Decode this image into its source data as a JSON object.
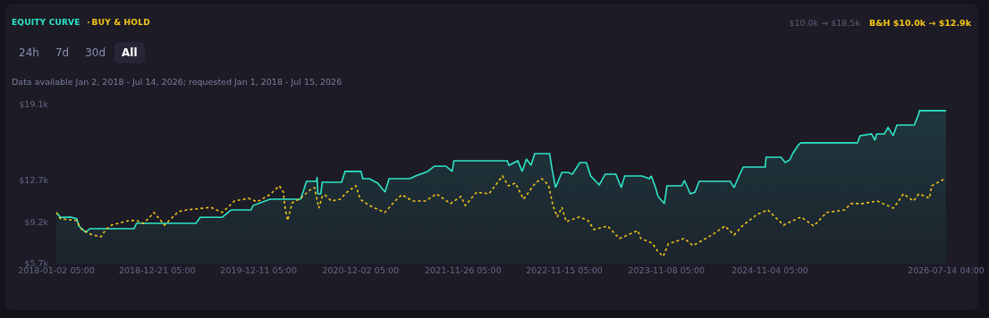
{
  "chart_data": {
    "type": "line",
    "legend": "top left",
    "marker": "none",
    "grid": false,
    "annotations": [
      "24h",
      "7d",
      "30d",
      "All",
      "Data available Jan 2, 2018 - Jul 14, 2026; requested Jan 1, 2018 - Jul 15, 2026",
      "$10.0k → $18.5k",
      "B&H $10.0k → $12.9k"
    ],
    "xlim": [
      "2018-01-02T05:00",
      "2026-07-14T04:00"
    ],
    "xticks": [
      {
        "value": "2018-01-02T05:00",
        "label": "2018-01-02 05:00"
      },
      {
        "value": "2018-12-21T05:00",
        "label": "2018-12-21 05:00"
      },
      {
        "value": "2019-12-11T05:00",
        "label": "2019-12-11 05:00"
      },
      {
        "value": "2020-12-02T05:00",
        "label": "2020-12-02 05:00"
      },
      {
        "value": "2021-11-26T05:00",
        "label": "2021-11-26 05:00"
      },
      {
        "value": "2022-11-15T05:00",
        "label": "2022-11-15 05:00"
      },
      {
        "value": "2023-11-08T05:00",
        "label": "2023-11-08 05:00"
      },
      {
        "value": "2024-11-04T05:00",
        "label": "2024-11-04 05:00"
      },
      {
        "value": "2026-07-14T04:00",
        "label": "2026-07-14 04:00"
      }
    ],
    "ylim": [
      5700,
      19100
    ],
    "yticks": [
      {
        "value": 5700,
        "label": "$5.7k"
      },
      {
        "value": 9200,
        "label": "$9.2k"
      },
      {
        "value": 12700,
        "label": "$12.7k"
      },
      {
        "value": 19100,
        "label": "$19.1k"
      }
    ],
    "series": [
      {
        "name": "EQUITY CURVE",
        "type": "area",
        "color": "#2ee6c9",
        "line_style": "solid",
        "x": [
          "2018-01-02T05:00",
          "2018-01-17",
          "2018-02-22",
          "2018-03-15",
          "2018-03-22",
          "2018-04-15",
          "2018-04-30",
          "2018-10-01",
          "2018-10-10",
          "2019-05-06",
          "2019-05-21",
          "2019-08-06",
          "2019-09-06",
          "2019-11-15",
          "2019-11-22",
          "2020-01-20",
          "2020-05-06",
          "2020-05-15",
          "2020-05-27",
          "2020-07-01",
          "2020-07-03",
          "2020-07-06",
          "2020-07-16",
          "2020-07-21",
          "2020-09-27",
          "2020-10-09",
          "2020-12-04",
          "2020-12-10",
          "2021-01-02",
          "2021-01-31",
          "2021-02-26",
          "2021-03-12",
          "2021-05-24",
          "2021-06-13",
          "2021-07-25",
          "2021-08-18",
          "2021-09-27",
          "2021-10-19",
          "2021-10-25",
          "2022-04-30",
          "2022-05-06",
          "2022-06-06",
          "2022-06-21",
          "2022-07-06",
          "2022-07-22",
          "2022-08-04",
          "2022-09-25",
          "2022-10-04",
          "2022-10-16",
          "2022-11-07",
          "2022-11-29",
          "2022-12-14",
          "2023-01-09",
          "2023-02-01",
          "2023-02-16",
          "2023-03-18",
          "2023-04-08",
          "2023-05-15",
          "2023-06-03",
          "2023-06-15",
          "2023-08-15",
          "2023-09-09",
          "2023-09-16",
          "2023-10-01",
          "2023-10-10",
          "2023-11-01",
          "2023-11-10",
          "2024-01-01",
          "2024-01-10",
          "2024-01-31",
          "2024-02-16",
          "2024-03-02",
          "2024-06-18",
          "2024-07-02",
          "2024-07-18",
          "2024-08-03",
          "2024-10-19",
          "2024-10-22",
          "2024-12-13",
          "2024-12-28",
          "2025-01-13",
          "2025-01-23",
          "2025-02-13",
          "2025-02-22",
          "2025-09-07",
          "2025-09-16",
          "2025-10-26",
          "2025-11-07",
          "2025-11-13",
          "2025-12-10",
          "2025-12-23",
          "2026-01-10",
          "2026-01-23",
          "2026-03-25",
          "2026-04-09",
          "2026-04-12",
          "2026-07-14T04:00"
        ],
        "values": [
          10000,
          9590,
          9620,
          9470,
          8860,
          8340,
          8640,
          8640,
          9090,
          9090,
          9600,
          9600,
          10220,
          10220,
          10590,
          11120,
          11120,
          11720,
          12630,
          12630,
          13000,
          11570,
          11570,
          12550,
          12550,
          13460,
          13460,
          12850,
          12850,
          12480,
          11720,
          12850,
          12850,
          13080,
          13460,
          13910,
          13910,
          13460,
          14360,
          14360,
          13980,
          14360,
          13460,
          14510,
          13980,
          14960,
          14960,
          13610,
          12100,
          13380,
          13380,
          13230,
          14210,
          14210,
          13080,
          12330,
          13230,
          13230,
          12100,
          13080,
          13080,
          12850,
          13080,
          12100,
          11350,
          10750,
          12250,
          12250,
          12700,
          11570,
          11720,
          12630,
          12630,
          12100,
          13000,
          13830,
          13830,
          14660,
          14660,
          14210,
          14430,
          14960,
          15720,
          15870,
          15870,
          16470,
          16620,
          16090,
          16620,
          16620,
          17150,
          16470,
          17370,
          17370,
          18280,
          18580,
          18580
        ]
      },
      {
        "name": "BUY & HOLD",
        "color": "#f5c518",
        "line_style": "dashed",
        "x": [
          "2018-01-02T05:00",
          "2018-01-17",
          "2018-03-14",
          "2018-04-01",
          "2018-05-08",
          "2018-06-08",
          "2018-06-24",
          "2018-07-15",
          "2018-09-15",
          "2018-10-10",
          "2018-11-04",
          "2018-12-10",
          "2019-01-16",
          "2019-03-05",
          "2019-04-04",
          "2019-06-04",
          "2019-06-26",
          "2019-08-06",
          "2019-09-18",
          "2019-11-06",
          "2019-12-06",
          "2020-01-20",
          "2020-02-22",
          "2020-03-07",
          "2020-03-13",
          "2020-03-22",
          "2020-04-07",
          "2020-05-07",
          "2020-06-07",
          "2020-06-24",
          "2020-07-09",
          "2020-07-21",
          "2020-07-30",
          "2020-08-22",
          "2020-09-22",
          "2020-10-16",
          "2020-11-16",
          "2020-12-01",
          "2021-01-02",
          "2021-02-25",
          "2021-04-02",
          "2021-04-26",
          "2021-06-02",
          "2021-07-18",
          "2021-08-25",
          "2021-10-13",
          "2021-11-19",
          "2021-12-04",
          "2022-01-13",
          "2022-02-25",
          "2022-04-13",
          "2022-05-04",
          "2022-05-28",
          "2022-06-26",
          "2022-08-06",
          "2022-08-28",
          "2022-09-21",
          "2022-10-07",
          "2022-10-22",
          "2022-11-07",
          "2022-11-22",
          "2023-01-08",
          "2023-02-07",
          "2023-02-28",
          "2023-04-16",
          "2023-05-28",
          "2023-07-31",
          "2023-08-10",
          "2023-09-19",
          "2023-10-10",
          "2023-10-28",
          "2023-11-15",
          "2024-01-10",
          "2024-02-09",
          "2024-04-16",
          "2024-05-31",
          "2024-07-02",
          "2024-08-03",
          "2024-09-21",
          "2024-10-28",
          "2024-12-22",
          "2025-02-22",
          "2025-04-07",
          "2025-05-22",
          "2025-07-24",
          "2025-08-15",
          "2025-09-25",
          "2025-11-15",
          "2026-01-10",
          "2026-01-25",
          "2026-02-15",
          "2026-03-22",
          "2026-04-10",
          "2026-05-17",
          "2026-05-25",
          "2026-07-14T04:00"
        ],
        "values": [
          10000,
          9470,
          9320,
          8560,
          8110,
          7960,
          8560,
          8940,
          9320,
          9320,
          9090,
          10000,
          8940,
          10070,
          10220,
          10370,
          10440,
          10000,
          10970,
          11200,
          10900,
          11500,
          12250,
          11720,
          10370,
          9320,
          10820,
          11200,
          11870,
          12100,
          10370,
          11350,
          11500,
          10970,
          11120,
          11720,
          12250,
          11120,
          10590,
          10000,
          10970,
          11500,
          10970,
          10970,
          11570,
          10750,
          11350,
          10590,
          11720,
          11570,
          13080,
          12250,
          12480,
          11120,
          12480,
          12850,
          12330,
          10590,
          9620,
          10440,
          9240,
          9620,
          9320,
          8560,
          8860,
          7810,
          8480,
          7810,
          7430,
          6680,
          6300,
          7360,
          7810,
          7210,
          8110,
          8860,
          8110,
          8940,
          9840,
          10220,
          8940,
          9620,
          8860,
          10000,
          10220,
          10750,
          10750,
          10970,
          10370,
          10820,
          11570,
          10970,
          11570,
          11200,
          12250,
          12900
        ]
      }
    ]
  }
}
